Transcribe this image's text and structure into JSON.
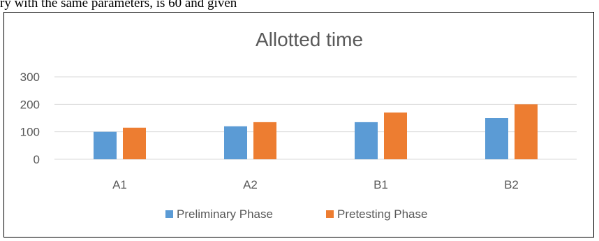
{
  "page": {
    "top_text": "ry with the same parameters, is 60 and given"
  },
  "chart_data": {
    "type": "bar",
    "title": "Allotted time",
    "xlabel": "",
    "ylabel": "",
    "categories": [
      "A1",
      "A2",
      "B1",
      "B2"
    ],
    "series": [
      {
        "name": "Preliminary Phase",
        "color": "#5b9bd5",
        "values": [
          100,
          120,
          135,
          150
        ]
      },
      {
        "name": "Pretesting Phase",
        "color": "#ed7d31",
        "values": [
          115,
          135,
          170,
          200
        ]
      }
    ],
    "ylim": [
      0,
      300
    ],
    "yticks": [
      0,
      100,
      200,
      300
    ],
    "ytick_labels": [
      "0",
      "100",
      "200",
      "300"
    ],
    "grid": true,
    "legend_position": "bottom",
    "gridline_color": "#d9d9d9"
  }
}
